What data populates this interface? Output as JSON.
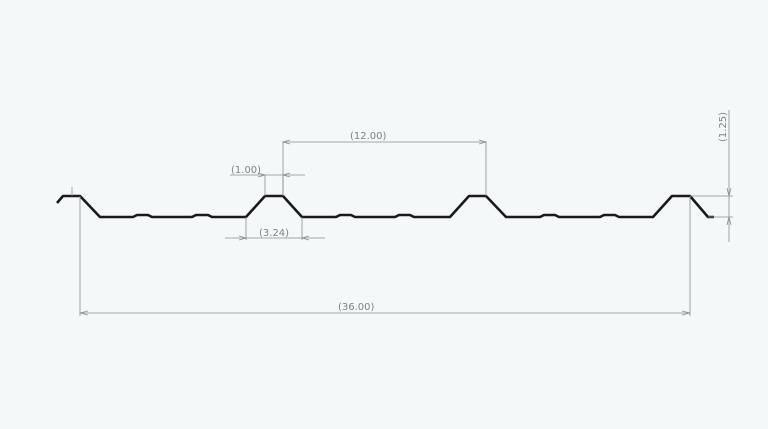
{
  "drawing": {
    "dimensions": {
      "pitch": "(12.00)",
      "crest_width": "(1.00)",
      "rib_base_width": "(3.24)",
      "overall_width": "(36.00)",
      "rib_height": "(1.25)"
    },
    "colors": {
      "profile": "#1a1a1a",
      "dimension": "#8a8f94",
      "background": "#f5f8f8"
    }
  }
}
